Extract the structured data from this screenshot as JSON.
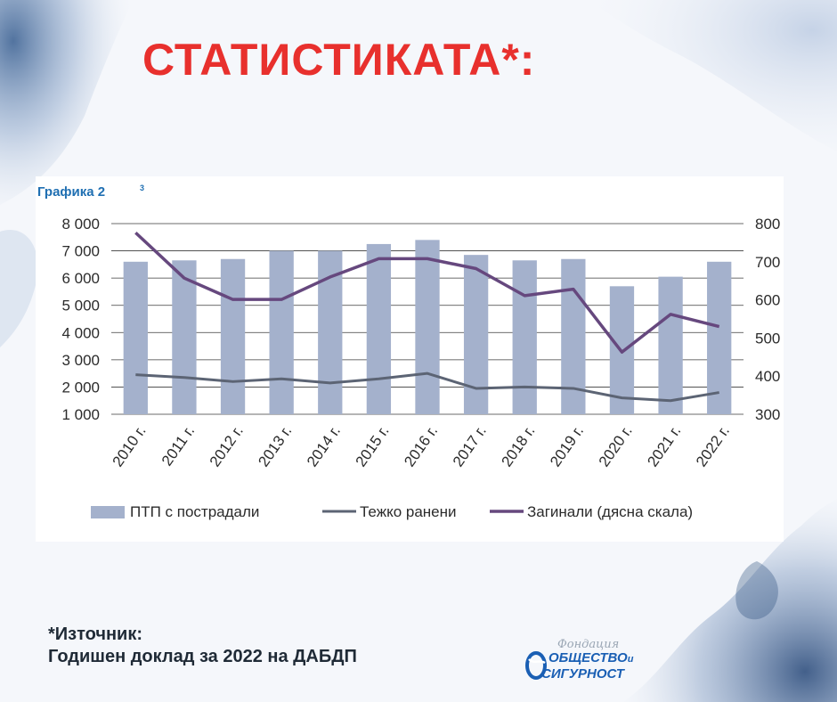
{
  "page": {
    "title": "СТАТИСТИКАТА*:",
    "source_line1": "*Източник:",
    "source_line2": "Годишен доклад за 2022 на ДАБДП",
    "logo": {
      "script_text": "Фондация",
      "line1": "ОБЩЕСТВО",
      "line1_suffix": "и",
      "line2": "СИГУРНОСТ"
    },
    "colors": {
      "title": "#e8302d",
      "bars": "#a4b1cc",
      "serious_injuries": "#5c6474",
      "deaths": "#66487e",
      "chart_label": "#1f6fb2"
    }
  },
  "chart_data": {
    "type": "bar",
    "title": "Графика 2",
    "title_superscript": "3",
    "categories": [
      "2010 г.",
      "2011 г.",
      "2012 г.",
      "2013 г.",
      "2014 г.",
      "2015 г.",
      "2016 г.",
      "2017 г.",
      "2018 г.",
      "2019 г.",
      "2020 г.",
      "2021 г.",
      "2022 г."
    ],
    "series": [
      {
        "name": "ПТП с пострадали",
        "type": "bar",
        "axis": "left",
        "values": [
          6600,
          6650,
          6700,
          7000,
          7000,
          7250,
          7400,
          6850,
          6650,
          6700,
          5700,
          6050,
          6600
        ]
      },
      {
        "name": "Тежко ранени",
        "type": "line",
        "axis": "left",
        "values": [
          2450,
          2350,
          2200,
          2300,
          2150,
          2300,
          2500,
          1950,
          2000,
          1950,
          1600,
          1500,
          1800
        ]
      },
      {
        "name": "Загинали (дясна скала)",
        "type": "line",
        "axis": "right",
        "values": [
          776,
          657,
          601,
          601,
          660,
          708,
          708,
          682,
          611,
          628,
          463,
          562,
          530
        ]
      }
    ],
    "y_left": {
      "min": 1000,
      "max": 8000,
      "ticks": [
        "1 000",
        "2 000",
        "3 000",
        "4 000",
        "5 000",
        "6 000",
        "7 000",
        "8 000"
      ]
    },
    "y_right": {
      "min": 300,
      "max": 800,
      "ticks": [
        "300",
        "400",
        "500",
        "600",
        "700",
        "800"
      ]
    },
    "grid": true,
    "legend_position": "bottom"
  }
}
